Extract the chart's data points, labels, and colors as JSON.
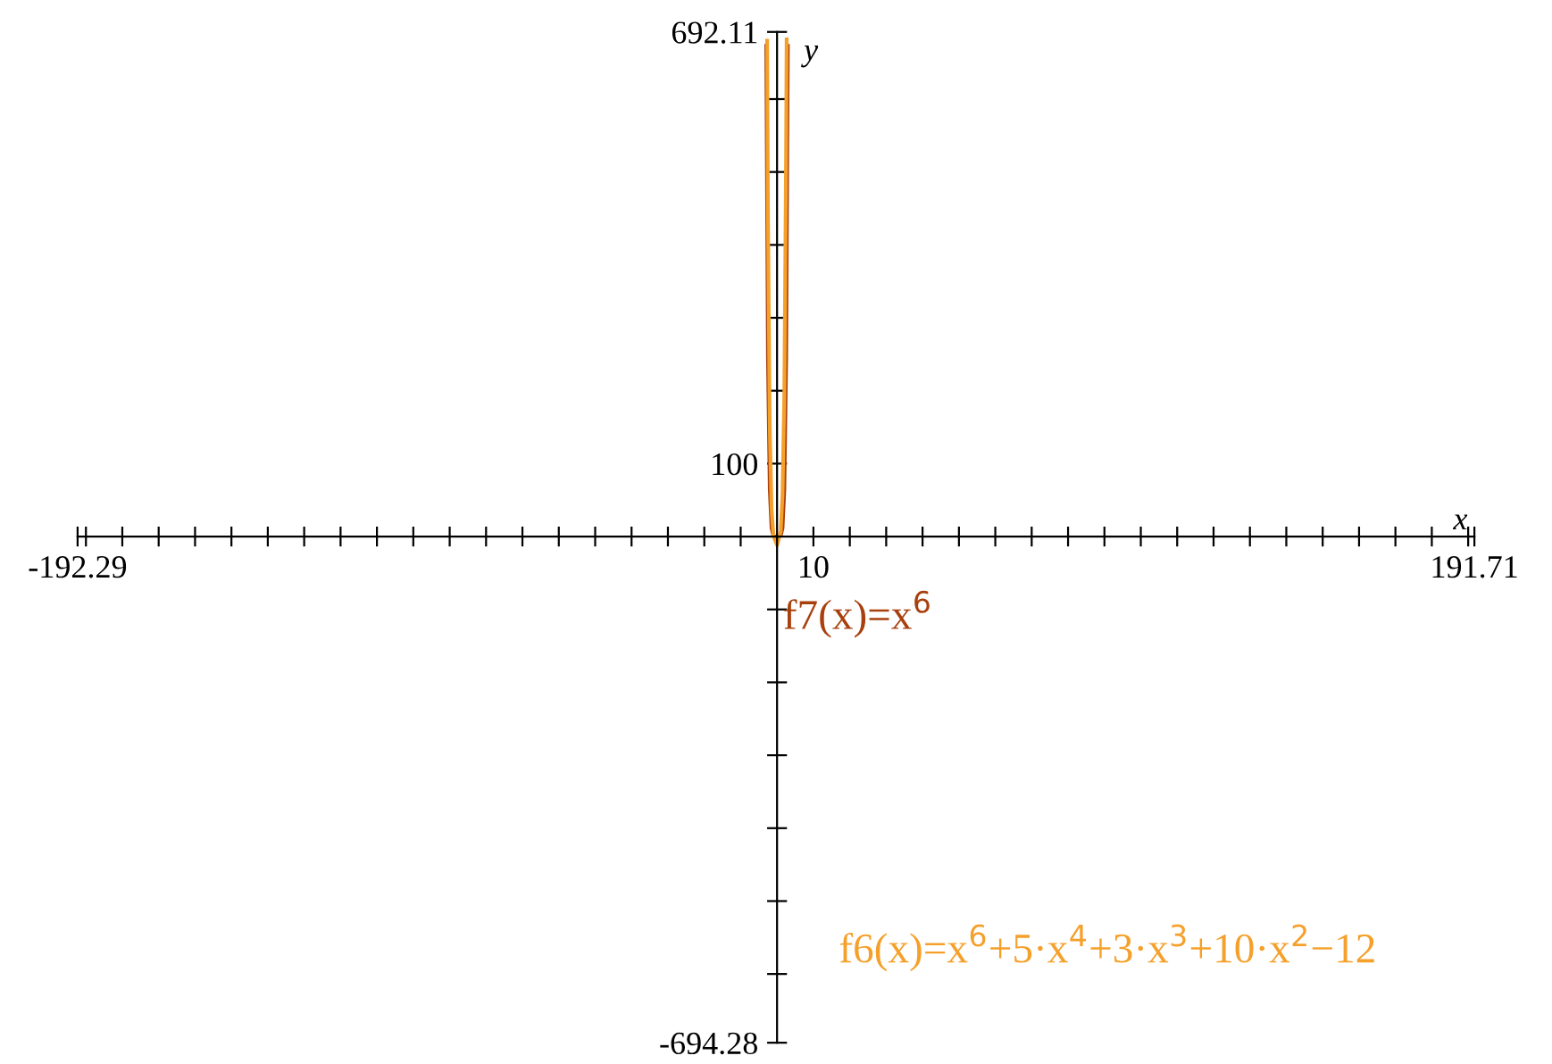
{
  "chart_data": {
    "type": "line",
    "xlabel": "x",
    "ylabel": "y",
    "xlim": [
      -192.29,
      191.71
    ],
    "ylim": [
      -694.28,
      692.11
    ],
    "xticks": [
      {
        "value": -192.29,
        "label": "-192.29"
      },
      {
        "value": -190,
        "label": null
      },
      {
        "value": -180,
        "label": null
      },
      {
        "value": -170,
        "label": null
      },
      {
        "value": -160,
        "label": null
      },
      {
        "value": -150,
        "label": null
      },
      {
        "value": -140,
        "label": null
      },
      {
        "value": -130,
        "label": null
      },
      {
        "value": -120,
        "label": null
      },
      {
        "value": -110,
        "label": null
      },
      {
        "value": -100,
        "label": null
      },
      {
        "value": -90,
        "label": null
      },
      {
        "value": -80,
        "label": null
      },
      {
        "value": -70,
        "label": null
      },
      {
        "value": -60,
        "label": null
      },
      {
        "value": -50,
        "label": null
      },
      {
        "value": -40,
        "label": null
      },
      {
        "value": -30,
        "label": null
      },
      {
        "value": -20,
        "label": null
      },
      {
        "value": -10,
        "label": null
      },
      10,
      {
        "value": 20,
        "label": null
      },
      {
        "value": 30,
        "label": null
      },
      {
        "value": 40,
        "label": null
      },
      {
        "value": 50,
        "label": null
      },
      {
        "value": 60,
        "label": null
      },
      {
        "value": 70,
        "label": null
      },
      {
        "value": 80,
        "label": null
      },
      {
        "value": 90,
        "label": null
      },
      {
        "value": 100,
        "label": null
      },
      {
        "value": 110,
        "label": null
      },
      {
        "value": 120,
        "label": null
      },
      {
        "value": 130,
        "label": null
      },
      {
        "value": 140,
        "label": null
      },
      {
        "value": 150,
        "label": null
      },
      {
        "value": 160,
        "label": null
      },
      {
        "value": 170,
        "label": null
      },
      {
        "value": 180,
        "label": null
      },
      {
        "value": 190,
        "label": null
      },
      {
        "value": 191.71,
        "label": "191.71"
      }
    ],
    "yticks": [
      {
        "value": -694.28,
        "label": "-694.28"
      },
      {
        "value": -600,
        "label": null
      },
      {
        "value": -500,
        "label": null
      },
      {
        "value": -400,
        "label": null
      },
      {
        "value": -300,
        "label": null
      },
      {
        "value": -200,
        "label": null
      },
      {
        "value": -100,
        "label": null
      },
      100,
      {
        "value": 200,
        "label": null
      },
      {
        "value": 300,
        "label": null
      },
      {
        "value": 400,
        "label": null
      },
      {
        "value": 500,
        "label": null
      },
      {
        "value": 600,
        "label": null
      },
      {
        "value": 692.11,
        "label": "692.11"
      }
    ],
    "series": [
      {
        "name": "f7(x)=x$^{6}$",
        "color": "#a8400e",
        "x": [
          -2.96,
          -2.5,
          -2,
          -1.5,
          -1,
          -0.5,
          0,
          0.5,
          1,
          1.5,
          2,
          2.5,
          2.96
        ],
        "values": [
          673,
          244,
          64,
          11,
          1,
          0,
          0,
          0,
          1,
          11,
          64,
          244,
          673
        ]
      },
      {
        "name": "f6(x)=x$^{6}$+5·x$^{4}$+3·x$^{3}$+10·x$^{2}$−12",
        "color": "#f5a02a",
        "x": [
          -2.72,
          -2.5,
          -2,
          -1.5,
          -1,
          0,
          1,
          1.5,
          2,
          2.5,
          2.63
        ],
        "values": [
          680,
          443,
          148,
          37,
          1,
          -12,
          7,
          57,
          196,
          537,
          682
        ]
      }
    ],
    "grid": false,
    "legend": false,
    "marker": "none",
    "line_style": "solid"
  }
}
